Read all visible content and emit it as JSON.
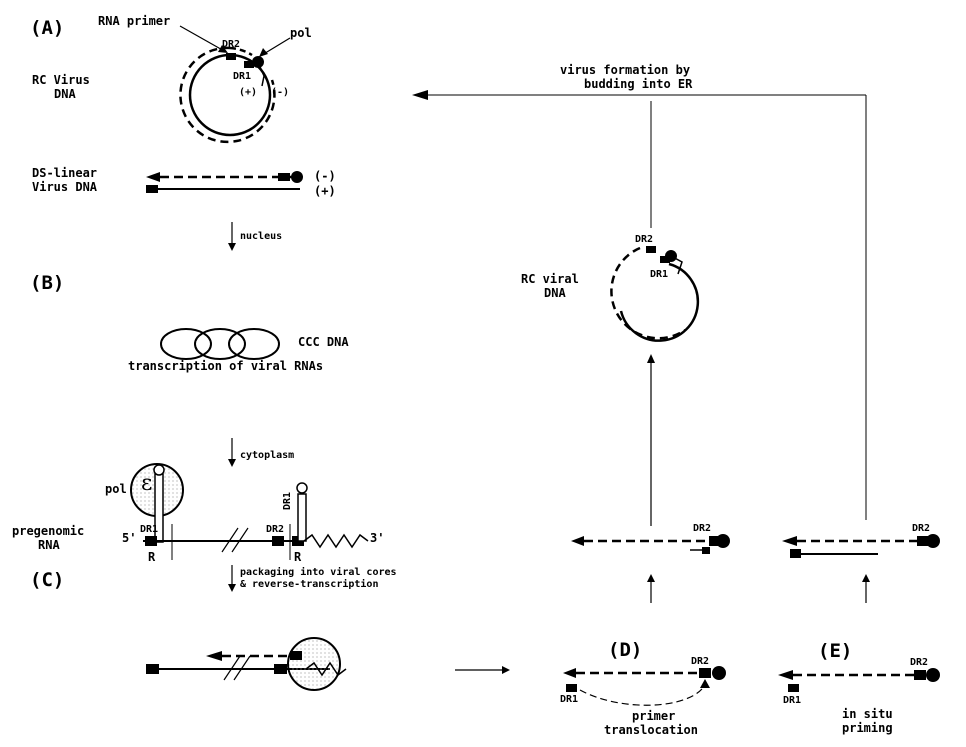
{
  "sections": {
    "a": "(A)",
    "b": "(B)",
    "c": "(C)",
    "d": "(D)",
    "e": "(E)"
  },
  "panel_a": {
    "rna_primer": "RNA primer",
    "pol": "pol",
    "dr2": "DR2",
    "dr1": "DR1",
    "plus": "(+)",
    "minus": "(-)",
    "rc_virus_line1": "RC Virus",
    "rc_virus_line2": "DNA",
    "ds_line1": "DS-linear",
    "ds_line2": "Virus DNA",
    "ds_minus": "(-)",
    "ds_plus": "(+)",
    "nucleus": "nucleus"
  },
  "panel_b": {
    "ccc": "CCC DNA",
    "transcription": "transcription of viral RNAs",
    "cytoplasm": "cytoplasm",
    "pol": "pol",
    "epsilon": "ε",
    "pregenomic_line1": "pregenomic",
    "pregenomic_line2": "RNA",
    "five_prime": "5'",
    "three_prime": "3'",
    "dr1_left": "DR1",
    "dr2_right": "DR2",
    "dr1_right": "DR1",
    "r_left": "R",
    "r_right": "R",
    "packaging_line1": "packaging into viral cores",
    "packaging_line2": "& reverse-transcription"
  },
  "right_side": {
    "virus_formation_line1": "virus formation by",
    "virus_formation_line2": "budding into ER",
    "rc_viral_line1": "RC viral",
    "rc_viral_line2": "DNA",
    "dr2_circle": "DR2",
    "dr1_circle": "DR1",
    "dr2_mid_d": "DR2",
    "dr2_mid_e": "DR2",
    "dr2_d": "DR2",
    "dr1_d": "DR1",
    "dr2_e": "DR2",
    "dr1_e": "DR1",
    "primer_line1": "primer",
    "primer_line2": "translocation",
    "insitu_line1": "in situ",
    "insitu_line2": "priming"
  }
}
